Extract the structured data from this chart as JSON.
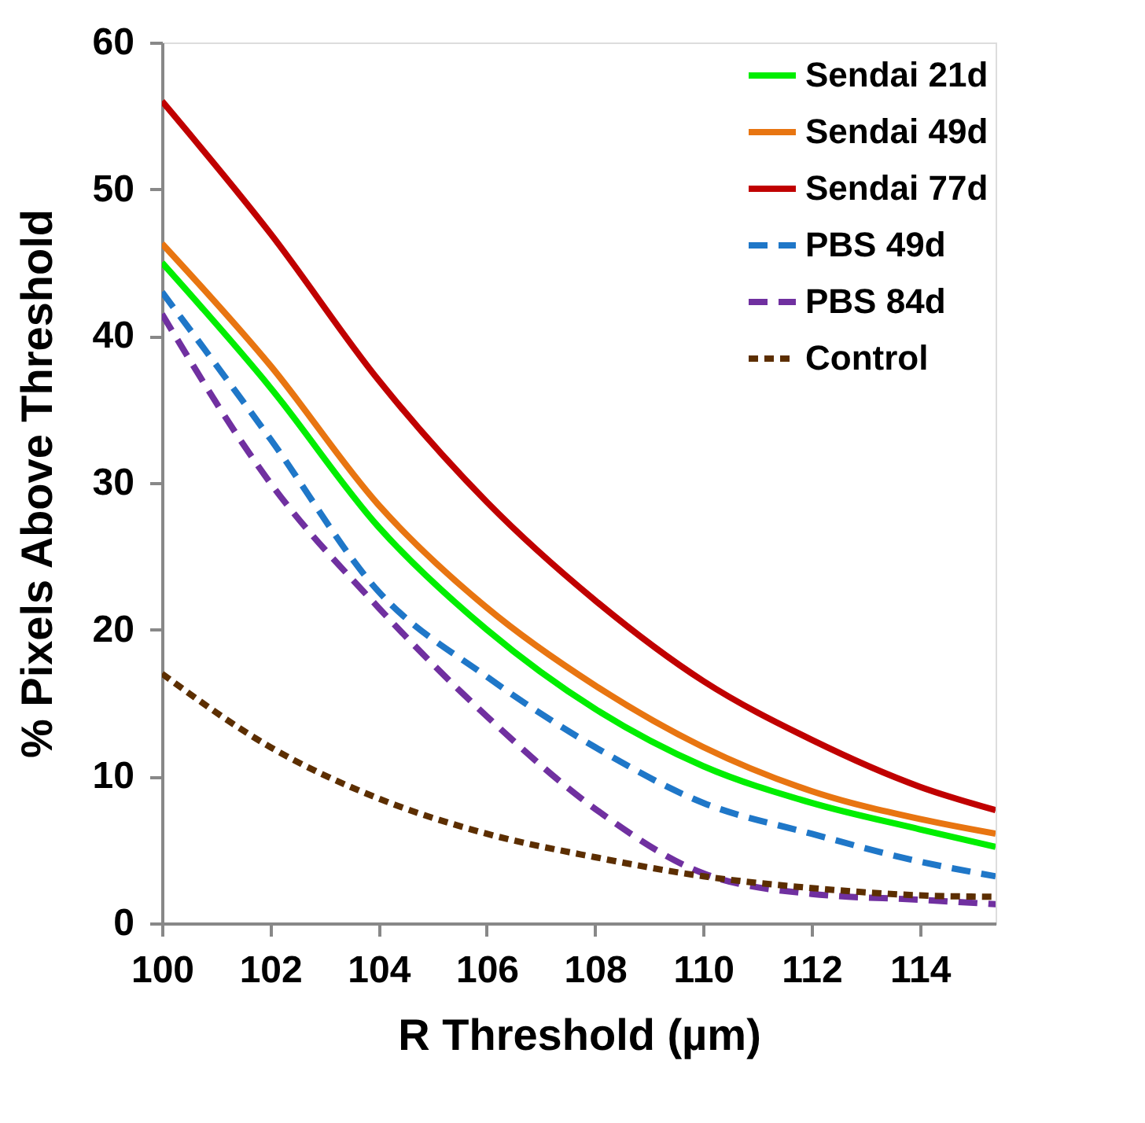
{
  "chart_data": {
    "type": "line",
    "xlabel": "R Threshold (µm)",
    "ylabel": "% Pixels Above Threshold",
    "x": [
      100,
      102,
      104,
      106,
      108,
      110,
      112,
      114,
      115.4
    ],
    "xlim": [
      100,
      115.4
    ],
    "xticks": [
      100,
      102,
      104,
      106,
      108,
      110,
      112,
      114
    ],
    "ylim": [
      0,
      60
    ],
    "yticks": [
      0,
      10,
      20,
      30,
      40,
      50,
      60
    ],
    "grid": false,
    "legend": "top right",
    "marker": "none",
    "series": [
      {
        "name": "Sendai 21d",
        "color": "#00ee00",
        "line_style": "solid",
        "values": [
          45,
          36.5,
          27,
          20,
          14.6,
          10.7,
          8.2,
          6.4,
          5.2
        ]
      },
      {
        "name": "Sendai 49d",
        "color": "#e87511",
        "line_style": "solid",
        "values": [
          46.3,
          38,
          28.5,
          21.5,
          16.2,
          12,
          9,
          7.1,
          6.1
        ]
      },
      {
        "name": "Sendai 77d",
        "color": "#c00000",
        "line_style": "solid",
        "values": [
          56,
          47,
          37,
          28.7,
          22,
          16.5,
          12.5,
          9.3,
          7.7
        ]
      },
      {
        "name": "PBS 49d",
        "color": "#1f77c8",
        "line_style": "dashed",
        "values": [
          43,
          33,
          22.6,
          16.8,
          12,
          8.2,
          6.1,
          4.2,
          3.2
        ]
      },
      {
        "name": "PBS 84d",
        "color": "#7030a0",
        "line_style": "dashed",
        "values": [
          41.5,
          30,
          21.5,
          14.1,
          7.8,
          3.4,
          2,
          1.6,
          1.3
        ]
      },
      {
        "name": "Control",
        "color": "#5c2e00",
        "line_style": "dotted",
        "values": [
          17,
          12,
          8.5,
          6.1,
          4.5,
          3.2,
          2.4,
          1.9,
          1.8
        ]
      }
    ]
  }
}
